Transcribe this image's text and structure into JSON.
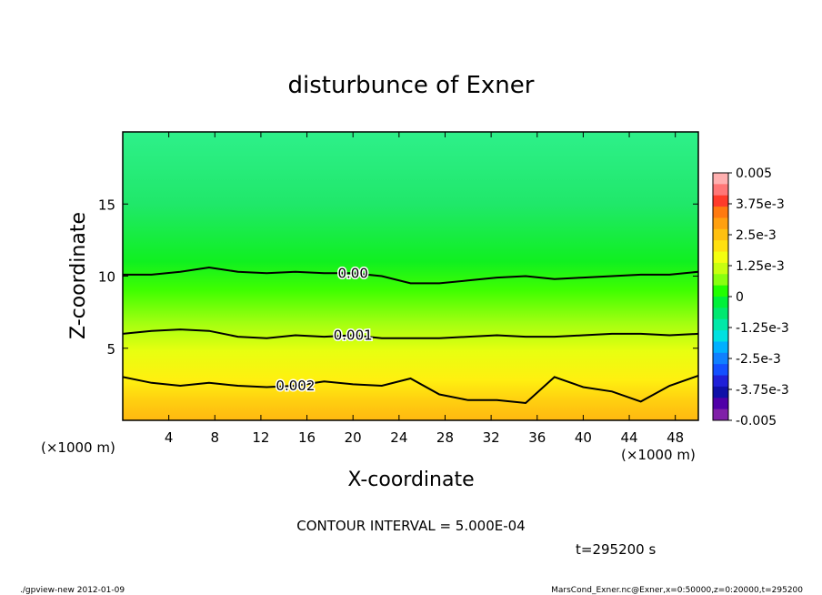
{
  "chart_data": {
    "type": "contour",
    "title": "disturbunce of Exner",
    "xlabel": "X-coordinate",
    "ylabel": "Z-coordinate",
    "x_unit_label": "(×1000 m)",
    "xlim": [
      0,
      50
    ],
    "ylim": [
      0,
      20
    ],
    "x_ticks": [
      4,
      8,
      12,
      16,
      20,
      24,
      28,
      32,
      36,
      40,
      44,
      48
    ],
    "y_ticks": [
      5,
      10,
      15
    ],
    "contour_lines": [
      {
        "label": "0.00",
        "z": [
          10.1,
          10.1,
          10.3,
          10.6,
          10.3,
          10.2,
          10.3,
          10.2,
          10.2,
          10.0,
          9.5,
          9.5,
          9.7,
          9.9,
          10.0,
          9.8,
          9.9,
          10.0,
          10.1,
          10.1,
          10.3
        ]
      },
      {
        "label": "0.001",
        "z": [
          6.0,
          6.2,
          6.3,
          6.2,
          5.8,
          5.7,
          5.9,
          5.8,
          5.9,
          5.7,
          5.7,
          5.7,
          5.8,
          5.9,
          5.8,
          5.8,
          5.9,
          6.0,
          6.0,
          5.9,
          6.0
        ]
      },
      {
        "label": "0.002",
        "z": [
          3.0,
          2.6,
          2.4,
          2.6,
          2.4,
          2.3,
          2.4,
          2.7,
          2.5,
          2.4,
          2.9,
          1.8,
          1.4,
          1.4,
          1.2,
          3.0,
          2.3,
          2.0,
          1.3,
          2.4,
          3.1
        ]
      }
    ],
    "colorbar": {
      "labels": [
        "0.005",
        "3.75e-3",
        "2.5e-3",
        "1.25e-3",
        "0",
        "-1.25e-3",
        "-2.5e-3",
        "-3.75e-3",
        "-0.005"
      ],
      "colors": [
        "#ffb0b0",
        "#ff7777",
        "#ff3b2a",
        "#ff7a10",
        "#ffa010",
        "#ffc010",
        "#ffe010",
        "#f4ff10",
        "#c8ff10",
        "#88ff10",
        "#22ff00",
        "#00f03a",
        "#00e870",
        "#00e8a8",
        "#00e0e0",
        "#00b0ff",
        "#1080ff",
        "#1450ff",
        "#2020d8",
        "#1010a8",
        "#5000a8",
        "#8020a8"
      ]
    }
  },
  "annotations": {
    "contour_interval": "CONTOUR INTERVAL = 5.000E-04",
    "time": "t=295200 s",
    "footer_left": "./gpview-new  2012-01-09",
    "footer_right": "MarsCond_Exner.nc@Exner,x=0:50000,z=0:20000,t=295200"
  }
}
